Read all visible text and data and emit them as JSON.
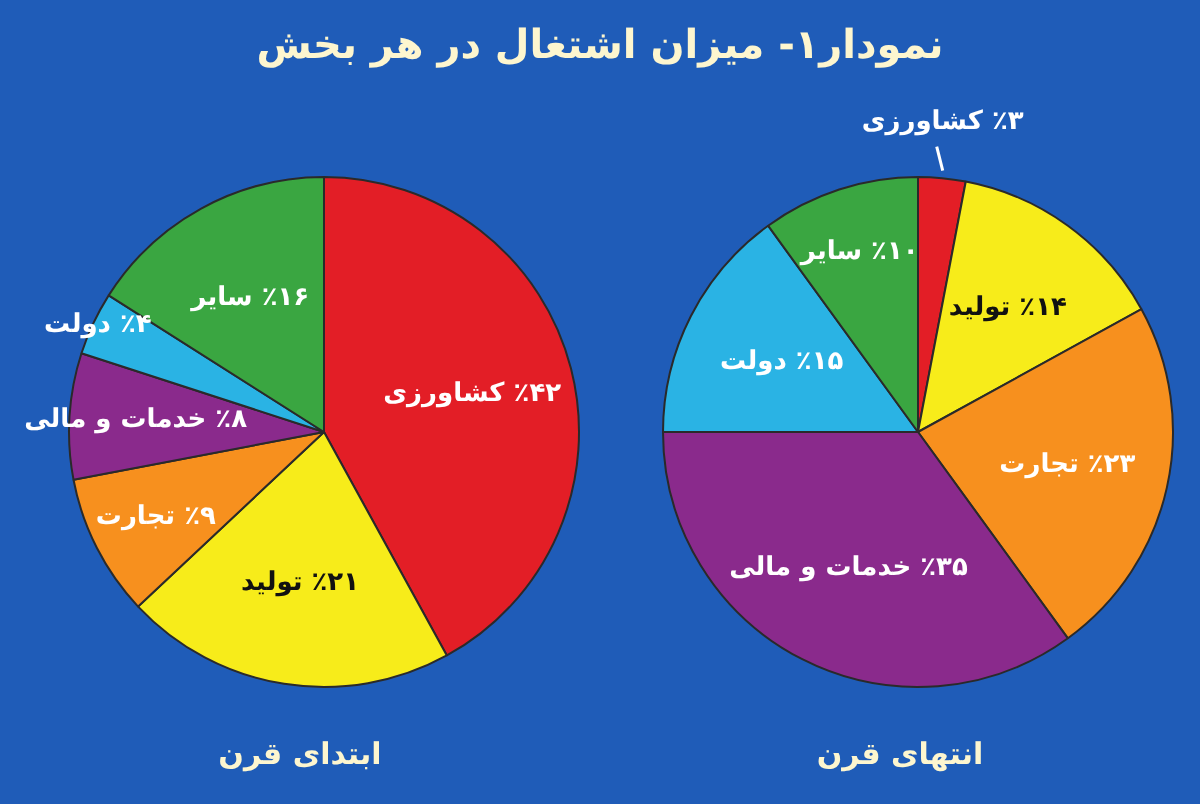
{
  "chart_data": [
    {
      "type": "pie",
      "title": "نمودار۱- میزان اشتغال در هر بخش",
      "xlabel": "ابتدای قرن",
      "legend": false,
      "categories": [
        "کشاورزی",
        "تولید",
        "تجارت",
        "خدمات و مالی",
        "دولت",
        "سایر"
      ],
      "values": [
        42,
        21,
        9,
        8,
        4,
        16
      ],
      "value_labels": [
        "٪۴۲",
        "٪۲۱",
        "٪۹",
        "٪۸",
        "٪۴",
        "٪۱۶"
      ],
      "colors": [
        "#e31e26",
        "#f7ec1a",
        "#f7901e",
        "#8a2a8c",
        "#2ab3e4",
        "#3aa641"
      ]
    },
    {
      "type": "pie",
      "xlabel": "انتهای قرن",
      "legend": false,
      "categories": [
        "کشاورزی",
        "تولید",
        "تجارت",
        "خدمات و مالی",
        "دولت",
        "سایر"
      ],
      "values": [
        3,
        14,
        23,
        35,
        15,
        10
      ],
      "value_labels": [
        "٪۳",
        "٪۱۴",
        "٪۲۳",
        "٪۳۵",
        "٪۱۵",
        "٪۱۰"
      ],
      "colors": [
        "#e31e26",
        "#f7ec1a",
        "#f7901e",
        "#8a2a8c",
        "#2ab3e4",
        "#3aa641"
      ]
    }
  ]
}
